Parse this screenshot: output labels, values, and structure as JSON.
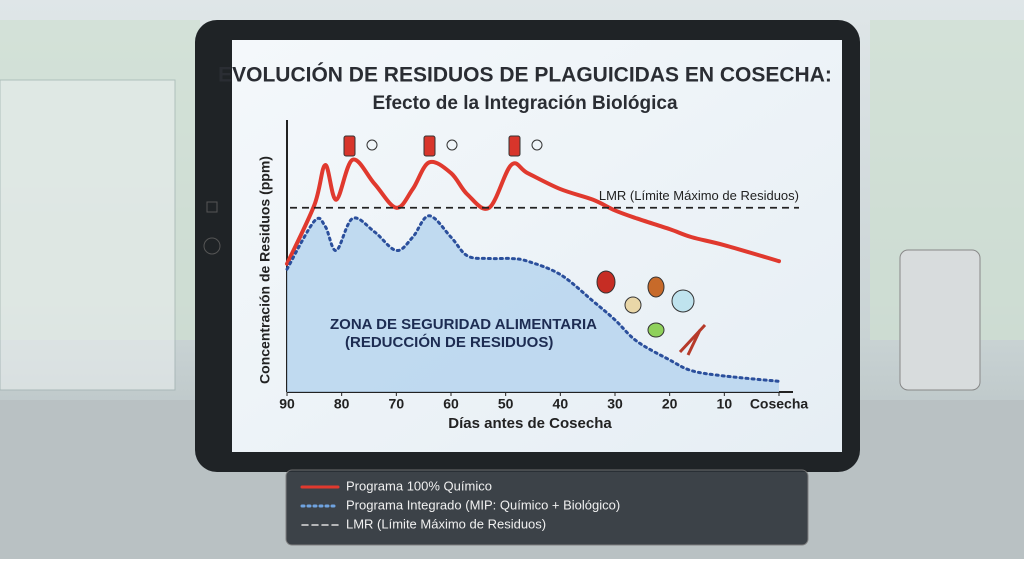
{
  "chart_data": {
    "type": "line",
    "title": "EVOLUCIÓN DE RESIDUOS DE PLAGUICIDAS EN COSECHA:",
    "subtitle": "Efecto de la Integración Biológica",
    "y_label": "Concentración de Residuos (ppm)",
    "x_label": "Días antes de Cosecha",
    "x": [
      90,
      85,
      83,
      81,
      78,
      74,
      70,
      67,
      64,
      60,
      57,
      53,
      49,
      46,
      40,
      34,
      30,
      26,
      20,
      16,
      10,
      0
    ],
    "series": [
      {
        "name": "Programa 100% Químico",
        "color": "#e0392e",
        "values": [
          48,
          70,
          85,
          72,
          87,
          78,
          69,
          76,
          86,
          82,
          74,
          69,
          85,
          82,
          76,
          72,
          68,
          65,
          61,
          58,
          55,
          49
        ]
      },
      {
        "name": "Programa Integrado (MIP: Químico + Biológico)",
        "color": "#2b4f9c",
        "fill": "#b7d5ef",
        "values": [
          46,
          64,
          62,
          53,
          65,
          60,
          53,
          58,
          66,
          58,
          51,
          50,
          50,
          49,
          44,
          34,
          27,
          19,
          12,
          8,
          6,
          4
        ]
      }
    ],
    "reference_line": {
      "name": "LMR (Límite Máximo de Residuos)",
      "label": "LMR (Límite Máximo de Residuos)",
      "value": 69,
      "color": "#222222"
    },
    "annotations": [
      "ZONA DE SEGURIDAD ALIMENTARIA",
      "(REDUCCIÓN DE RESIDUOS)"
    ],
    "xlim": [
      90,
      0
    ],
    "xticks": [
      90,
      80,
      70,
      60,
      50,
      40,
      30,
      20,
      10,
      {
        "value": 0,
        "label": "Cosecha"
      }
    ],
    "ylim": [
      0,
      100
    ],
    "grid": false
  }
}
